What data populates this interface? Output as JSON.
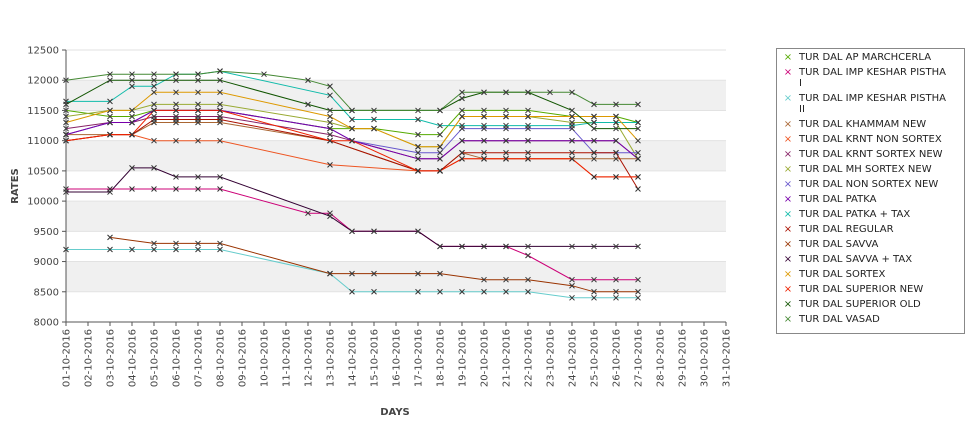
{
  "chart_data": {
    "type": "line",
    "xlabel": "DAYS",
    "ylabel": "RATES",
    "ylim": [
      8000,
      12500
    ],
    "yticks": [
      8000,
      8500,
      9000,
      9500,
      10000,
      10500,
      11000,
      11500,
      12000,
      12500
    ],
    "x": [
      "01-10-2016",
      "02-10-2016",
      "03-10-2016",
      "04-10-2016",
      "05-10-2016",
      "06-10-2016",
      "07-10-2016",
      "08-10-2016",
      "09-10-2016",
      "10-10-2016",
      "11-10-2016",
      "12-10-2016",
      "13-10-2016",
      "14-10-2016",
      "15-10-2016",
      "16-10-2016",
      "17-10-2016",
      "18-10-2016",
      "19-10-2016",
      "20-10-2016",
      "21-10-2016",
      "22-10-2016",
      "23-10-2016",
      "24-10-2016",
      "25-10-2016",
      "26-10-2016",
      "27-10-2016",
      "28-10-2016",
      "29-10-2016",
      "30-10-2016",
      "31-10-2016"
    ],
    "grid": true,
    "legend_position": "right",
    "series": [
      {
        "name": "TUR DAL AP MARCHCERLA",
        "color": "#55aa00",
        "values": [
          11500,
          null,
          11400,
          11400,
          11500,
          11500,
          11500,
          11500,
          null,
          null,
          null,
          null,
          11200,
          11200,
          11200,
          null,
          11100,
          11100,
          11500,
          11500,
          11500,
          11500,
          null,
          11400,
          11400,
          11400,
          11300,
          null,
          null,
          null,
          null
        ]
      },
      {
        "name": "TUR DAL IMP KESHAR PISTHA\nI",
        "color": "#cc0077",
        "values": [
          10200,
          null,
          10200,
          10200,
          10200,
          10200,
          10200,
          10200,
          null,
          null,
          null,
          9800,
          9800,
          9500,
          9500,
          null,
          9500,
          9250,
          9250,
          9250,
          9250,
          9100,
          null,
          8700,
          8700,
          8700,
          8700,
          null,
          null,
          null,
          null
        ]
      },
      {
        "name": "TUR DAL IMP KESHAR PISTHA\nII",
        "color": "#66cccc",
        "values": [
          9200,
          null,
          9200,
          9200,
          9200,
          9200,
          9200,
          9200,
          null,
          null,
          null,
          null,
          8800,
          8500,
          8500,
          null,
          8500,
          8500,
          8500,
          8500,
          8500,
          8500,
          null,
          8400,
          8400,
          8400,
          8400,
          null,
          null,
          null,
          null
        ]
      },
      {
        "name": "TUR DAL KHAMMAM NEW",
        "color": "#aa6633",
        "values": [
          11100,
          null,
          11100,
          11100,
          11300,
          11300,
          11300,
          11300,
          null,
          null,
          null,
          null,
          11000,
          null,
          null,
          null,
          10500,
          10500,
          10800,
          10700,
          10700,
          10700,
          null,
          10700,
          10700,
          10700,
          10700,
          null,
          null,
          null,
          null
        ]
      },
      {
        "name": "TUR DAL KRNT NON SORTEX",
        "color": "#ee5522",
        "values": [
          11000,
          null,
          11100,
          11100,
          11000,
          11000,
          11000,
          11000,
          null,
          null,
          null,
          null,
          10600,
          null,
          null,
          null,
          10500,
          10500,
          10700,
          10700,
          10700,
          10700,
          null,
          10700,
          10400,
          10400,
          10400,
          null,
          null,
          null,
          null
        ]
      },
      {
        "name": "TUR DAL KRNT SORTEX NEW",
        "color": "#882266",
        "values": [
          11200,
          null,
          11300,
          11300,
          11400,
          11400,
          11400,
          11400,
          null,
          null,
          null,
          null,
          11100,
          11000,
          null,
          null,
          10700,
          10700,
          11000,
          11000,
          11000,
          11000,
          null,
          11000,
          11000,
          11000,
          10700,
          null,
          null,
          null,
          null
        ]
      },
      {
        "name": "TUR DAL MH SORTEX NEW",
        "color": "#99aa33",
        "values": [
          11400,
          null,
          11500,
          11500,
          11600,
          11600,
          11600,
          11600,
          null,
          null,
          null,
          null,
          11300,
          11200,
          11200,
          null,
          10900,
          10900,
          11400,
          11400,
          11400,
          11400,
          null,
          11300,
          11300,
          11300,
          10700,
          null,
          null,
          null,
          null
        ]
      },
      {
        "name": "TUR DAL NON SORTEX NEW",
        "color": "#6655cc",
        "values": [
          11100,
          null,
          11300,
          11300,
          11500,
          11500,
          11500,
          11500,
          null,
          null,
          null,
          null,
          11200,
          11000,
          null,
          null,
          10800,
          10800,
          11200,
          11200,
          11200,
          11200,
          null,
          11200,
          10800,
          10800,
          10800,
          null,
          null,
          null,
          null
        ]
      },
      {
        "name": "TUR DAL PATKA",
        "color": "#7700aa",
        "values": [
          11100,
          null,
          11300,
          11300,
          11500,
          11500,
          11500,
          11500,
          null,
          null,
          null,
          null,
          11200,
          11000,
          null,
          null,
          10700,
          10700,
          11000,
          11000,
          11000,
          11000,
          null,
          11000,
          11000,
          11000,
          10700,
          null,
          null,
          null,
          null
        ]
      },
      {
        "name": "TUR DAL PATKA + TAX",
        "color": "#11bbaa",
        "values": [
          11650,
          null,
          11650,
          11900,
          11900,
          12100,
          12100,
          12150,
          null,
          null,
          null,
          null,
          11750,
          11350,
          11350,
          null,
          11350,
          11250,
          11250,
          11250,
          11250,
          11250,
          null,
          11250,
          11300,
          11300,
          11300,
          null,
          null,
          null,
          null
        ]
      },
      {
        "name": "TUR DAL REGULAR",
        "color": "#aa1100",
        "values": [
          11000,
          null,
          11100,
          11100,
          11350,
          11350,
          11350,
          11350,
          null,
          null,
          null,
          null,
          11000,
          null,
          null,
          null,
          10500,
          10500,
          10800,
          10800,
          10800,
          10800,
          null,
          10800,
          10800,
          10800,
          10200,
          null,
          null,
          null,
          null
        ]
      },
      {
        "name": "TUR DAL SAVVA",
        "color": "#993300",
        "values": [
          null,
          null,
          9400,
          null,
          9300,
          9300,
          9300,
          9300,
          null,
          null,
          null,
          null,
          8800,
          8800,
          8800,
          null,
          8800,
          8800,
          null,
          8700,
          8700,
          8700,
          null,
          8600,
          8500,
          8500,
          8500,
          null,
          null,
          null,
          null
        ]
      },
      {
        "name": "TUR DAL SAVVA + TAX",
        "color": "#330033",
        "values": [
          10150,
          null,
          10150,
          10550,
          10550,
          10400,
          10400,
          10400,
          null,
          null,
          null,
          null,
          9750,
          9500,
          9500,
          null,
          9500,
          9250,
          9250,
          9250,
          9250,
          9250,
          null,
          9250,
          9250,
          9250,
          9250,
          null,
          null,
          null,
          null
        ]
      },
      {
        "name": "TUR DAL SORTEX",
        "color": "#dd9900",
        "values": [
          11300,
          null,
          11500,
          11500,
          11800,
          11800,
          11800,
          11800,
          null,
          null,
          null,
          null,
          11400,
          11200,
          11200,
          null,
          10900,
          10900,
          11400,
          11400,
          11400,
          11400,
          null,
          11400,
          11400,
          11400,
          11000,
          null,
          null,
          null,
          null
        ]
      },
      {
        "name": "TUR DAL SUPERIOR NEW",
        "color": "#ee2200",
        "values": [
          11000,
          null,
          11100,
          11100,
          11500,
          11500,
          11500,
          11500,
          null,
          null,
          null,
          null,
          11000,
          11000,
          null,
          null,
          10500,
          10500,
          10700,
          10700,
          10700,
          10700,
          null,
          10700,
          10400,
          10400,
          10400,
          null,
          null,
          null,
          null
        ]
      },
      {
        "name": "TUR DAL SUPERIOR OLD",
        "color": "#115500",
        "values": [
          11600,
          null,
          12000,
          12000,
          12000,
          12000,
          12000,
          12000,
          null,
          null,
          null,
          11600,
          11500,
          11500,
          null,
          null,
          null,
          11500,
          11700,
          11800,
          11800,
          11800,
          null,
          11500,
          11200,
          11200,
          11200,
          null,
          null,
          null,
          null
        ]
      },
      {
        "name": "TUR DAL VASAD",
        "color": "#448833",
        "values": [
          12000,
          null,
          12100,
          12100,
          12100,
          12100,
          12100,
          12150,
          null,
          12100,
          null,
          12000,
          11900,
          11500,
          11500,
          null,
          11500,
          11500,
          11800,
          11800,
          11800,
          11800,
          11800,
          11800,
          11600,
          11600,
          11600,
          null,
          null,
          null,
          null
        ]
      }
    ]
  }
}
